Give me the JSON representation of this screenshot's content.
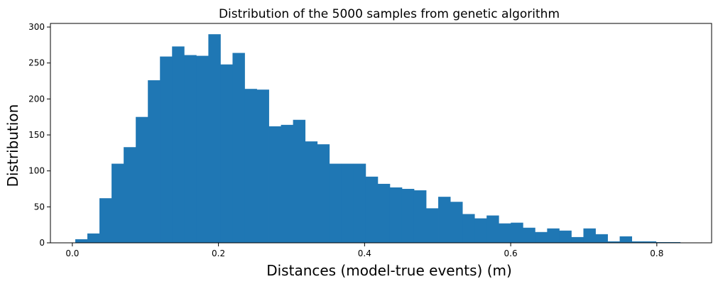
{
  "chart_data": {
    "type": "bar",
    "title": "Distribution of the 5000 samples from genetic algorithm",
    "xlabel": "Distances (model-true events) (m)",
    "ylabel": "Distribution",
    "xlim": [
      -0.03,
      0.875
    ],
    "ylim": [
      0,
      305
    ],
    "xticks": [
      0.0,
      0.2,
      0.4,
      0.6,
      0.8
    ],
    "xtick_labels": [
      "0.0",
      "0.2",
      "0.4",
      "0.6",
      "0.8"
    ],
    "yticks": [
      0,
      50,
      100,
      150,
      200,
      250,
      300
    ],
    "ytick_labels": [
      "0",
      "50",
      "100",
      "150",
      "200",
      "250",
      "300"
    ],
    "bar_color": "#1f77b4",
    "grid": false,
    "bin_start": 0.004,
    "bin_width": 0.01656,
    "values": [
      5,
      13,
      62,
      110,
      133,
      175,
      226,
      259,
      273,
      261,
      260,
      290,
      248,
      264,
      214,
      213,
      162,
      164,
      171,
      141,
      137,
      110,
      110,
      110,
      92,
      82,
      77,
      75,
      73,
      48,
      64,
      57,
      40,
      34,
      38,
      27,
      28,
      21,
      15,
      20,
      17,
      8,
      20,
      12,
      2,
      9,
      2,
      2,
      1,
      1
    ]
  }
}
